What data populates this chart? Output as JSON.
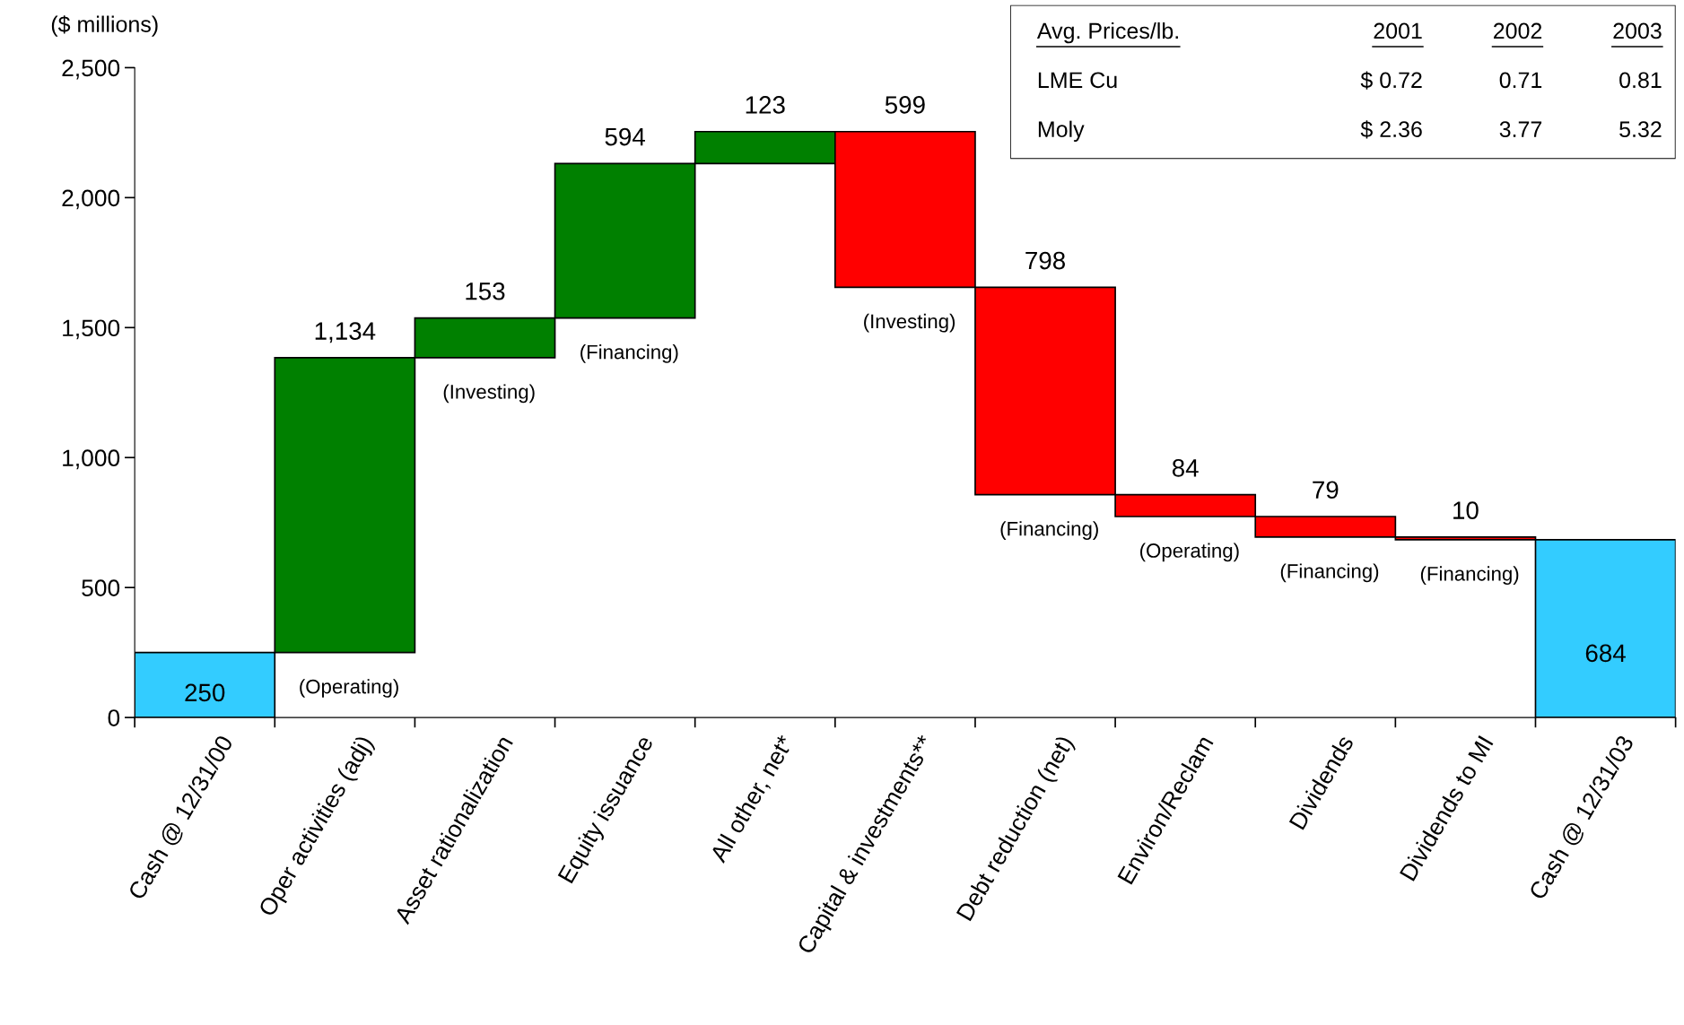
{
  "chart_data": [
    {
      "type": "bar",
      "ylabel": "($ millions)",
      "categories": [
        "Cash @ 12/31/00",
        "Oper activities (adj)",
        "Asset rationalization",
        "Equity issuance",
        "All other, net*",
        "Capital & investments**",
        "Debt reduction (net)",
        "Environ/Reclam",
        "Dividends",
        "Dividends to MI",
        "Cash @ 12/31/03"
      ],
      "values": [
        250,
        1134,
        153,
        594,
        123,
        -599,
        -798,
        -84,
        -79,
        -10,
        684
      ],
      "base": [
        0,
        250,
        1384,
        1537,
        2131,
        2254,
        1655,
        857,
        773,
        694,
        0
      ],
      "colors": [
        "#33ccff",
        "#008000",
        "#008000",
        "#008000",
        "#008000",
        "#ff0000",
        "#ff0000",
        "#ff0000",
        "#ff0000",
        "#ff0000",
        "#33ccff"
      ],
      "value_labels": [
        "250",
        "1,134",
        "153",
        "594",
        "123",
        "599",
        "798",
        "84",
        "79",
        "10",
        "684"
      ],
      "ylim": [
        0,
        2500
      ],
      "yticks": [
        0,
        {
          "value": 500,
          "label": "500"
        },
        {
          "value": 1000,
          "label": "1,000"
        },
        {
          "value": 1500,
          "label": "1,500"
        },
        {
          "value": 2000,
          "label": "2,000"
        },
        {
          "value": 2500,
          "label": "2,500"
        }
      ],
      "annotations": [
        "(Operating)",
        "(Investing)",
        "(Financing)",
        "(Investing)",
        "(Financing)",
        "(Operating)",
        "(Financing)",
        "(Financing)"
      ]
    },
    {
      "type": "other",
      "title": "Avg. Prices/lb.",
      "categories": [
        "2001",
        "2002",
        "2003"
      ],
      "y_categories": [
        "LME Cu",
        "Moly"
      ],
      "cell_labels": [
        [
          "$ 0.72",
          "0.71",
          "0.81"
        ],
        [
          "$ 2.36",
          "3.77",
          "5.32"
        ]
      ]
    }
  ]
}
